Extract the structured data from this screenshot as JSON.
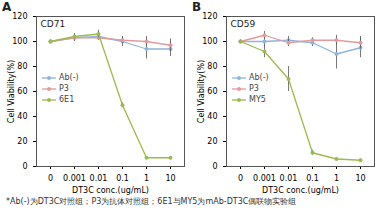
{
  "chart_data": [
    {
      "type": "line",
      "title": "A",
      "annotations": [
        "CD71"
      ],
      "x_label": "DT3C conc.(ug/mL)",
      "y_label": "Cell Viability(%)",
      "categories": [
        "0",
        "0.001",
        "0.01",
        "0.1",
        "1",
        "10"
      ],
      "ylim": [
        0,
        120
      ],
      "yticks": [
        0,
        20,
        40,
        60,
        80,
        100,
        120
      ],
      "grid": false,
      "legend": "left",
      "series": [
        {
          "name": "Ab(-)",
          "color": "#8fb4dc",
          "marker": "circle",
          "values": [
            100,
            103,
            104,
            100,
            94,
            94
          ],
          "errors": [
            1,
            3,
            3,
            4,
            8,
            6
          ]
        },
        {
          "name": "P3",
          "color": "#e39a9a",
          "marker": "circle",
          "values": [
            100,
            103,
            103,
            101,
            100,
            97
          ],
          "errors": [
            1,
            3,
            2,
            3,
            4,
            5
          ]
        },
        {
          "name": "6E1",
          "color": "#9cbb4f",
          "marker": "circle",
          "values": [
            100,
            104,
            106,
            49,
            7,
            7
          ],
          "errors": [
            1,
            2,
            3,
            2,
            1,
            1
          ]
        }
      ]
    },
    {
      "type": "line",
      "title": "B",
      "annotations": [
        "CD59"
      ],
      "x_label": "DT3C conc.(ug/mL)",
      "y_label": "Cell Viability(%)",
      "categories": [
        "0",
        "0.001",
        "0.01",
        "0.1",
        "1",
        "10"
      ],
      "ylim": [
        0,
        120
      ],
      "yticks": [
        0,
        20,
        40,
        60,
        80,
        100,
        120
      ],
      "grid": false,
      "legend": "left",
      "series": [
        {
          "name": "Ab(-)",
          "color": "#8fb4dc",
          "marker": "circle",
          "values": [
            100,
            100,
            101,
            99,
            90,
            95
          ],
          "errors": [
            1,
            4,
            3,
            3,
            12,
            8
          ]
        },
        {
          "name": "P3",
          "color": "#e39a9a",
          "marker": "circle",
          "values": [
            100,
            105,
            99,
            101,
            101,
            99
          ],
          "errors": [
            1,
            3,
            3,
            2,
            4,
            5
          ]
        },
        {
          "name": "MY5",
          "color": "#9cbb4f",
          "marker": "circle",
          "values": [
            100,
            92,
            70,
            11,
            6,
            5
          ],
          "errors": [
            1,
            5,
            10,
            2,
            1,
            1
          ]
        }
      ]
    }
  ],
  "caption": "*Ab(-)为DT3C对照组；P3为抗体对照组；6E1与MY5为mAb-DT3C偶联物实验组"
}
